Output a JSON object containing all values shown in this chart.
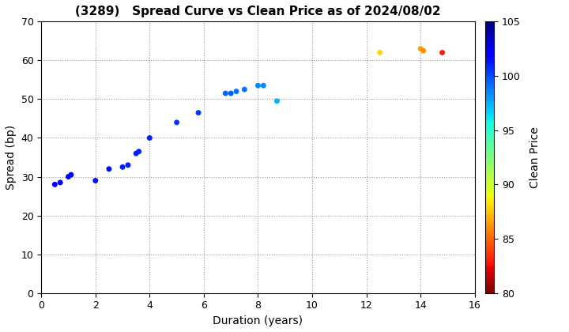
{
  "title": "(3289)   Spread Curve vs Clean Price as of 2024/08/02",
  "xlabel": "Duration (years)",
  "ylabel": "Spread (bp)",
  "colorbar_label": "Clean Price",
  "xlim": [
    0,
    16
  ],
  "ylim": [
    0,
    70
  ],
  "xticks": [
    0,
    2,
    4,
    6,
    8,
    10,
    12,
    14,
    16
  ],
  "yticks": [
    0,
    10,
    20,
    30,
    40,
    50,
    60,
    70
  ],
  "colorbar_min": 80,
  "colorbar_max": 105,
  "colorbar_ticks": [
    80,
    85,
    90,
    95,
    100,
    105
  ],
  "points": [
    {
      "duration": 0.5,
      "spread": 28.0,
      "price": 102.0
    },
    {
      "duration": 0.7,
      "spread": 28.5,
      "price": 102.0
    },
    {
      "duration": 1.0,
      "spread": 30.0,
      "price": 102.0
    },
    {
      "duration": 1.1,
      "spread": 30.5,
      "price": 102.0
    },
    {
      "duration": 2.0,
      "spread": 29.0,
      "price": 101.5
    },
    {
      "duration": 2.5,
      "spread": 32.0,
      "price": 101.5
    },
    {
      "duration": 3.0,
      "spread": 32.5,
      "price": 101.0
    },
    {
      "duration": 3.2,
      "spread": 33.0,
      "price": 101.0
    },
    {
      "duration": 3.5,
      "spread": 36.0,
      "price": 101.0
    },
    {
      "duration": 3.6,
      "spread": 36.5,
      "price": 101.0
    },
    {
      "duration": 4.0,
      "spread": 40.0,
      "price": 101.0
    },
    {
      "duration": 5.0,
      "spread": 44.0,
      "price": 100.5
    },
    {
      "duration": 5.8,
      "spread": 46.5,
      "price": 100.5
    },
    {
      "duration": 6.8,
      "spread": 51.5,
      "price": 99.5
    },
    {
      "duration": 7.0,
      "spread": 51.5,
      "price": 99.5
    },
    {
      "duration": 7.2,
      "spread": 52.0,
      "price": 99.0
    },
    {
      "duration": 7.5,
      "spread": 52.5,
      "price": 99.0
    },
    {
      "duration": 8.0,
      "spread": 53.5,
      "price": 98.5
    },
    {
      "duration": 8.2,
      "spread": 53.5,
      "price": 98.5
    },
    {
      "duration": 8.7,
      "spread": 49.5,
      "price": 97.5
    },
    {
      "duration": 12.5,
      "spread": 62.0,
      "price": 88.0
    },
    {
      "duration": 14.0,
      "spread": 63.0,
      "price": 86.5
    },
    {
      "duration": 14.1,
      "spread": 62.5,
      "price": 86.0
    },
    {
      "duration": 14.8,
      "spread": 62.0,
      "price": 83.0
    }
  ]
}
